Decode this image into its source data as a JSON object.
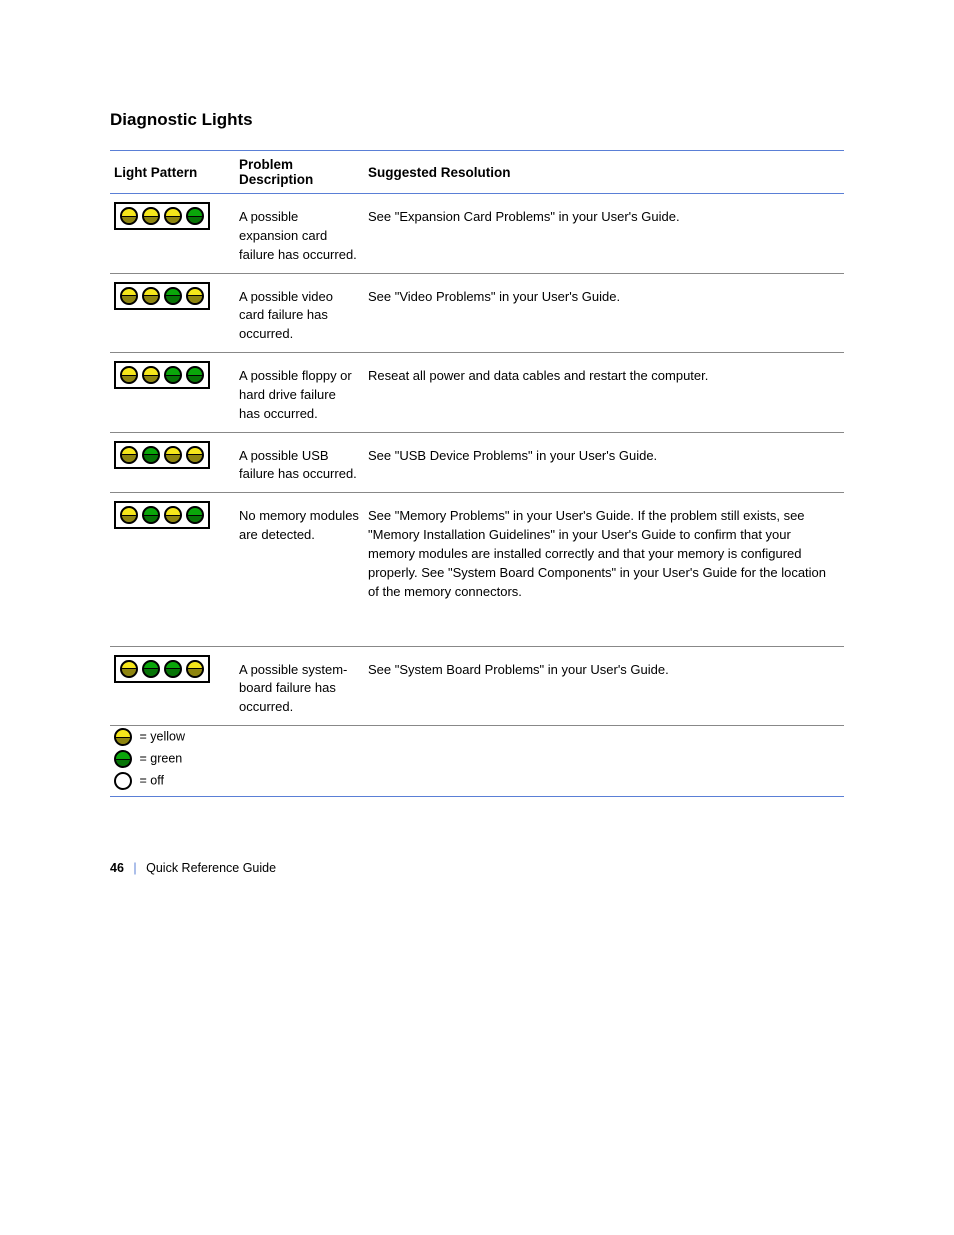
{
  "tableTitle": "Diagnostic Lights",
  "columns": {
    "pattern": "Light Pattern",
    "desc": "Problem Description",
    "action": "Suggested Resolution"
  },
  "ledColors": {
    "yellow": "#f5e61b",
    "green": "#0aa60a",
    "white": "#ffffff"
  },
  "borderBlue": "#5a7fd6",
  "rows": [
    {
      "pattern": [
        "y",
        "y",
        "y",
        "g"
      ],
      "desc": "A possible expansion card failure has occurred.",
      "action": "See \"Expansion Card Problems\" in your User's Guide."
    },
    {
      "pattern": [
        "y",
        "y",
        "g",
        "y"
      ],
      "desc": "A possible video card failure has occurred.",
      "action": "See \"Video Problems\" in your User's Guide."
    },
    {
      "pattern": [
        "y",
        "y",
        "g",
        "g"
      ],
      "desc": "A possible floppy or hard drive failure has occurred.",
      "action": "Reseat all power and data cables and restart the computer."
    },
    {
      "pattern": [
        "y",
        "g",
        "y",
        "y"
      ],
      "desc": "A possible USB failure has occurred.",
      "action": "See \"USB Device Problems\" in your User's Guide."
    },
    {
      "pattern": [
        "y",
        "g",
        "y",
        "g"
      ],
      "desc": "No memory modules are detected.",
      "action": "See \"Memory Problems\" in your User's Guide. If the problem still exists, see \"Memory Installation Guidelines\" in your User's Guide to confirm that your memory modules are installed correctly and that your memory is configured properly. See \"System Board Components\" in your User's Guide for the location of the memory connectors."
    },
    {
      "pattern": [
        "y",
        "g",
        "g",
        "y"
      ],
      "desc": "A possible system-board failure has occurred.",
      "action": "See \"System Board Problems\" in your User's Guide."
    }
  ],
  "legend": [
    {
      "c": "y",
      "label": "= yellow"
    },
    {
      "c": "g",
      "label": "= green"
    },
    {
      "c": "w",
      "label": "= off"
    }
  ],
  "footer": {
    "page": "46",
    "text": "Quick Reference Guide"
  }
}
